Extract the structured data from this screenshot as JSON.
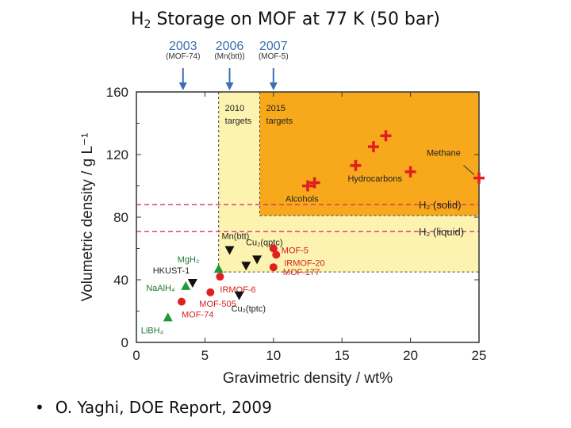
{
  "title": {
    "main_prefix": "H",
    "main_sub": "2",
    "main_rest": " Storage on MOF at 77 K  (50 bar)"
  },
  "years": [
    {
      "year": "2003",
      "code": "(MOF-74)",
      "x": 3.4
    },
    {
      "year": "2006",
      "code": "(Mn(btt))",
      "x": 6.8
    },
    {
      "year": "2007",
      "code": "(MOF-5)",
      "x": 10.0
    }
  ],
  "bullet": {
    "symbol": "•",
    "text": "O. Yaghi, DOE Report,  2009"
  },
  "chart_data": {
    "type": "scatter",
    "xlabel": "Gravimetric density / wt%",
    "ylabel": "Volumetric density / g L⁻¹",
    "xlim": [
      0,
      25
    ],
    "ylim": [
      0,
      160
    ],
    "xticks": [
      0,
      5,
      10,
      15,
      20,
      25
    ],
    "yticks": [
      0,
      40,
      80,
      120,
      160
    ],
    "regions": [
      {
        "label": "2010\ntargets",
        "x0": 6,
        "x1": 25,
        "y0": 45,
        "y1": 160,
        "color": "#fdf3b0"
      },
      {
        "label": "2015\ntargets",
        "x0": 9,
        "x1": 25,
        "y0": 81,
        "y1": 160,
        "color": "#f7a81b"
      }
    ],
    "reference_lines": [
      {
        "label": "H₂ (solid)",
        "y": 88,
        "color": "#d6336c"
      },
      {
        "label": "H₂ (liquid)",
        "y": 70.8,
        "color": "#d6336c"
      }
    ],
    "series": [
      {
        "marker": "plus",
        "color": "#e02020",
        "points": [
          {
            "x": 12.5,
            "y": 100,
            "label": "Alcohols"
          },
          {
            "x": 13.0,
            "y": 102,
            "label": ""
          },
          {
            "x": 16.0,
            "y": 113,
            "label": "Hydrocarbons"
          },
          {
            "x": 17.3,
            "y": 125,
            "label": ""
          },
          {
            "x": 18.2,
            "y": 132,
            "label": ""
          },
          {
            "x": 20.0,
            "y": 109,
            "label": ""
          },
          {
            "x": 25.0,
            "y": 105,
            "label": "Methane"
          }
        ]
      },
      {
        "marker": "circle",
        "color": "#e02020",
        "points": [
          {
            "x": 10.0,
            "y": 60,
            "label": "MOF-5"
          },
          {
            "x": 10.2,
            "y": 56,
            "label": "IRMOF-20"
          },
          {
            "x": 10.0,
            "y": 48,
            "label": "MOF-177"
          },
          {
            "x": 6.1,
            "y": 42,
            "label": "IRMOF-6"
          },
          {
            "x": 5.4,
            "y": 32,
            "label": "MOF-505"
          },
          {
            "x": 3.3,
            "y": 26,
            "label": "MOF-74"
          }
        ]
      },
      {
        "marker": "triangle-down",
        "color": "#111111",
        "points": [
          {
            "x": 6.8,
            "y": 59,
            "label": "Mn(btt)"
          },
          {
            "x": 8.8,
            "y": 53,
            "label": "Cu₂(qptc)"
          },
          {
            "x": 8.0,
            "y": 49,
            "label": ""
          },
          {
            "x": 4.1,
            "y": 38,
            "label": ""
          },
          {
            "x": 7.5,
            "y": 30,
            "label": "Cu₂(tptc)"
          }
        ]
      },
      {
        "marker": "triangle-up",
        "color": "#1e9a3a",
        "points": [
          {
            "x": 6.0,
            "y": 47,
            "label": "MgH₂"
          },
          {
            "x": 3.6,
            "y": 36,
            "label": "NaAlH₄"
          },
          {
            "x": 2.3,
            "y": 16,
            "label": "LiBH₄"
          }
        ]
      }
    ],
    "extra_labels": [
      {
        "text": "HKUST-1",
        "x": 1.2,
        "y": 44
      }
    ]
  }
}
